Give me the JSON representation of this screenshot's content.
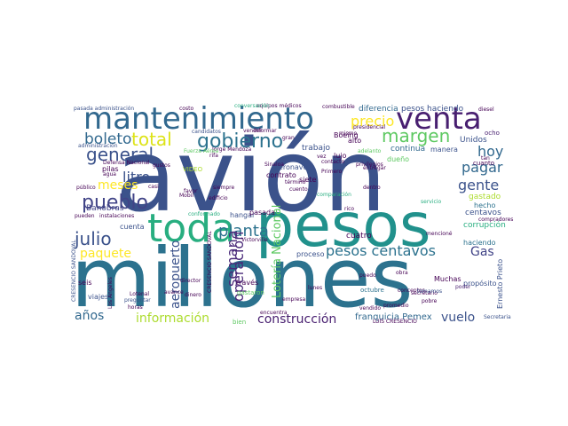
{
  "words": [
    {
      "text": "avión",
      "color": "#3b528b"
    },
    {
      "text": "millones",
      "color": "#2c728e"
    },
    {
      "text": "pesos",
      "color": "#21918c"
    },
    {
      "text": "mantenimiento",
      "color": "#31688e"
    },
    {
      "text": "venta",
      "color": "#481f70"
    },
    {
      "text": "toda",
      "color": "#28ae80"
    },
    {
      "text": "gobierno",
      "color": "#2c728e"
    },
    {
      "text": "total",
      "color": "#dde318"
    },
    {
      "text": "margen",
      "color": "#5ec962"
    },
    {
      "text": "boleto",
      "color": "#31688e"
    },
    {
      "text": "general",
      "color": "#3b528b"
    },
    {
      "text": "pueblo",
      "color": "#414487"
    },
    {
      "text": "litro",
      "color": "#3b528b"
    },
    {
      "text": "julio",
      "color": "#3b528b"
    },
    {
      "text": "planta",
      "color": "#2c728e"
    },
    {
      "text": "pesos centavos",
      "color": "#2c728e"
    },
    {
      "text": "precio",
      "color": "#fde725"
    },
    {
      "text": "pagar",
      "color": "#31688e"
    },
    {
      "text": "hoy",
      "color": "#31688e"
    },
    {
      "text": "gente",
      "color": "#3b528b"
    },
    {
      "text": "semana",
      "color": "#482878"
    },
    {
      "text": "meses",
      "color": "#fde725"
    },
    {
      "text": "paquete",
      "color": "#fde725"
    },
    {
      "text": "Gas",
      "color": "#414487"
    },
    {
      "text": "aeropuerto",
      "color": "#3b528b"
    },
    {
      "text": "operación",
      "color": "#482878"
    },
    {
      "text": "Lotería Nacional",
      "color": "#5ec962"
    },
    {
      "text": "años",
      "color": "#31688e"
    },
    {
      "text": "información",
      "color": "#addc30"
    },
    {
      "text": "construcción",
      "color": "#481f70"
    },
    {
      "text": "vuelo",
      "color": "#3b528b"
    },
    {
      "text": "franquicia Pemex",
      "color": "#31688e"
    },
    {
      "text": "Banobras",
      "color": "#414487"
    },
    {
      "text": "pesos haciendo",
      "color": "#3b528b"
    },
    {
      "text": "diferencia",
      "color": "#31688e"
    },
    {
      "text": "Boeing",
      "color": "#440154"
    },
    {
      "text": "trabajo",
      "color": "#3b528b"
    },
    {
      "text": "lujo",
      "color": "#440154"
    },
    {
      "text": "alto",
      "color": "#440154"
    },
    {
      "text": "continua",
      "color": "#31688e"
    },
    {
      "text": "dueño",
      "color": "#5ec962"
    },
    {
      "text": "manera",
      "color": "#3b528b"
    },
    {
      "text": "Unidos",
      "color": "#3b528b"
    },
    {
      "text": "ocho",
      "color": "#481f70"
    },
    {
      "text": "cuanto",
      "color": "#440154"
    },
    {
      "text": "gastado",
      "color": "#addc30"
    },
    {
      "text": "hecho",
      "color": "#2c728e"
    },
    {
      "text": "centavos",
      "color": "#3b528b"
    },
    {
      "text": "corrupción",
      "color": "#28ae80"
    },
    {
      "text": "haciendo",
      "color": "#2c728e"
    },
    {
      "text": "propósito",
      "color": "#3b528b"
    },
    {
      "text": "Ernesto Prieto",
      "color": "#3b528b"
    },
    {
      "text": "cuatro",
      "color": "#440154"
    },
    {
      "text": "proceso",
      "color": "#3b528b"
    },
    {
      "text": "siete",
      "color": "#440154"
    },
    {
      "text": "aeronave",
      "color": "#3b528b"
    },
    {
      "text": "contrato",
      "color": "#440154"
    },
    {
      "text": "hangar",
      "color": "#3b528b"
    },
    {
      "text": "pasada",
      "color": "#440154"
    },
    {
      "text": "cuenta",
      "color": "#3b528b"
    },
    {
      "text": "través",
      "color": "#440154"
    },
    {
      "text": "gastaron",
      "color": "#5ec962"
    },
    {
      "text": "viajes",
      "color": "#3b528b"
    },
    {
      "text": "seis",
      "color": "#440154"
    },
    {
      "text": "pilas",
      "color": "#440154"
    },
    {
      "text": "VIDEO",
      "color": "#addc30"
    },
    {
      "text": "Defensa Nacional",
      "color": "#440154"
    },
    {
      "text": "público",
      "color": "#440154"
    },
    {
      "text": "lunes",
      "color": "#440154"
    },
    {
      "text": "octubre",
      "color": "#2c728e"
    },
    {
      "text": "obra",
      "color": "#440154"
    },
    {
      "text": "Muchas",
      "color": "#440154"
    },
    {
      "text": "conceptos",
      "color": "#440154"
    },
    {
      "text": "poder",
      "color": "#481f70"
    },
    {
      "text": "encuentra",
      "color": "#440154"
    },
    {
      "text": "empresa",
      "color": "#440154"
    },
    {
      "text": "bien",
      "color": "#5ec962"
    },
    {
      "text": "Lotenal",
      "color": "#440154"
    },
    {
      "text": "preguntar",
      "color": "#3b528b"
    },
    {
      "text": "director",
      "color": "#440154"
    },
    {
      "text": "pasada administración",
      "color": "#3b528b"
    },
    {
      "text": "costo",
      "color": "#440154"
    },
    {
      "text": "equipos médicos",
      "color": "#440154"
    },
    {
      "text": "combustible",
      "color": "#440154"
    },
    {
      "text": "presidencial",
      "color": "#440154"
    },
    {
      "text": "adelanto",
      "color": "#5ec962"
    },
    {
      "text": "administración",
      "color": "#3b528b"
    },
    {
      "text": "Victorville",
      "color": "#440154"
    },
    {
      "text": "comparación",
      "color": "#28ae80"
    },
    {
      "text": "secretario",
      "color": "#440154"
    },
    {
      "text": "Secretaria",
      "color": "#3b528b"
    },
    {
      "text": "compradores",
      "color": "#440154"
    },
    {
      "text": "dinero",
      "color": "#440154"
    },
    {
      "text": "Primero",
      "color": "#440154"
    },
    {
      "text": "contacto",
      "color": "#440154"
    },
    {
      "text": "entregar",
      "color": "#440154"
    },
    {
      "text": "privilegios",
      "color": "#440154"
    },
    {
      "text": "siempre",
      "color": "#440154"
    },
    {
      "text": "Sinaloa",
      "color": "#440154"
    },
    {
      "text": "cuento",
      "color": "#440154"
    },
    {
      "text": "dentro",
      "color": "#440154"
    },
    {
      "text": "edificio",
      "color": "#440154"
    },
    {
      "text": "instalaciones",
      "color": "#440154"
    },
    {
      "text": "pueden",
      "color": "#440154"
    },
    {
      "text": "mencioné",
      "color": "#440154"
    },
    {
      "text": "término",
      "color": "#440154"
    },
    {
      "text": "vender",
      "color": "#440154"
    },
    {
      "text": "servicio",
      "color": "#28ae80"
    },
    {
      "text": "horas",
      "color": "#440154"
    },
    {
      "text": "avance",
      "color": "#440154"
    },
    {
      "text": "rico",
      "color": "#440154"
    },
    {
      "text": "Jorge Mendoza",
      "color": "#440154"
    },
    {
      "text": "vendido",
      "color": "#440154"
    },
    {
      "text": "promedio",
      "color": "#440154"
    },
    {
      "text": "pobre",
      "color": "#440154"
    },
    {
      "text": "diesel",
      "color": "#440154"
    },
    {
      "text": "informar",
      "color": "#440154"
    },
    {
      "text": "favor",
      "color": "#440154"
    },
    {
      "text": "gustos",
      "color": "#440154"
    },
    {
      "text": "rifa",
      "color": "#440154"
    },
    {
      "text": "agua",
      "color": "#440154"
    },
    {
      "text": "casi",
      "color": "#440154"
    },
    {
      "text": "vez",
      "color": "#440154"
    },
    {
      "text": "puedo",
      "color": "#440154"
    },
    {
      "text": "Fuerza Aérea",
      "color": "#5ec962"
    },
    {
      "text": "candidatos",
      "color": "#3b528b"
    },
    {
      "text": "Mobil",
      "color": "#440154"
    },
    {
      "text": "conformado",
      "color": "#28ae80"
    },
    {
      "text": "Los Angeles",
      "color": "#440154"
    },
    {
      "text": "tan",
      "color": "#440154"
    },
    {
      "text": "conversación",
      "color": "#28ae80"
    },
    {
      "text": "mismo",
      "color": "#440154"
    },
    {
      "text": "tomamos",
      "color": "#3b528b"
    },
    {
      "text": "LUIS CRESENCIO",
      "color": "#440154"
    },
    {
      "text": "CRESENCIO SANDOVAL",
      "color": "#3b528b"
    },
    {
      "text": "CRESENCIO SANDOVAL",
      "color": "#440154"
    },
    {
      "text": "gran",
      "color": "#440154"
    }
  ]
}
